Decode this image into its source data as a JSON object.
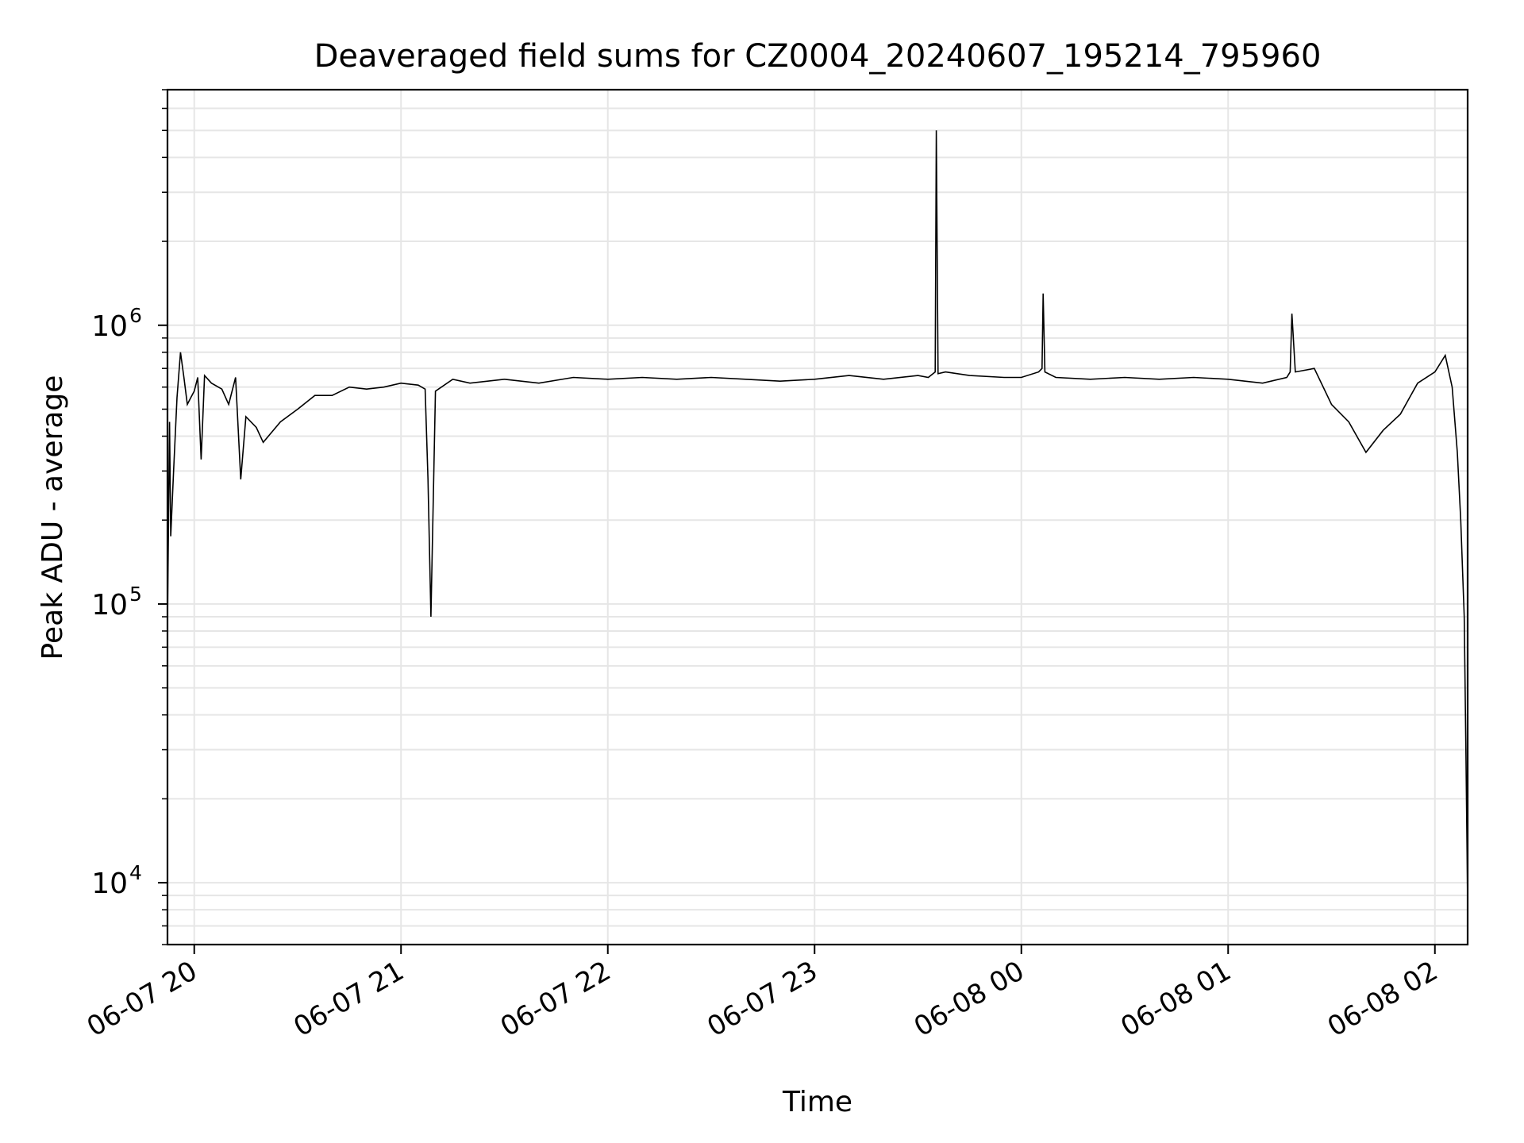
{
  "chart_data": {
    "type": "line",
    "title": "Deaveraged field sums for CZ0004_20240607_195214_795960",
    "xlabel": "Time",
    "ylabel": "Peak ADU - average",
    "yscale": "log",
    "grid": true,
    "line_color": "#000000",
    "grid_color": "#e6e6e6",
    "xlim": [
      "2024-06-07 19:52:14",
      "2024-06-08 02:09:30"
    ],
    "ylim": [
      6000,
      7000000
    ],
    "x_ticks": [
      {
        "value": "2024-06-07 20:00",
        "label": "06-07 20"
      },
      {
        "value": "2024-06-07 21:00",
        "label": "06-07 21"
      },
      {
        "value": "2024-06-07 22:00",
        "label": "06-07 22"
      },
      {
        "value": "2024-06-07 23:00",
        "label": "06-07 23"
      },
      {
        "value": "2024-06-08 00:00",
        "label": "06-08 00"
      },
      {
        "value": "2024-06-08 01:00",
        "label": "06-08 01"
      },
      {
        "value": "2024-06-08 02:00",
        "label": "06-08 02"
      }
    ],
    "y_ticks": [
      {
        "value": 10000,
        "base": "10",
        "exp": "4"
      },
      {
        "value": 100000,
        "base": "10",
        "exp": "5"
      },
      {
        "value": 1000000,
        "base": "10",
        "exp": "6"
      }
    ],
    "x": [
      "2024-06-07 19:52:14",
      "2024-06-07 19:52:50",
      "2024-06-07 19:53:10",
      "2024-06-07 19:54:00",
      "2024-06-07 19:55:00",
      "2024-06-07 19:56:00",
      "2024-06-07 19:57:00",
      "2024-06-07 19:58:00",
      "2024-06-07 19:59:00",
      "2024-06-07 20:00:00",
      "2024-06-07 20:01:00",
      "2024-06-07 20:02:00",
      "2024-06-07 20:03:00",
      "2024-06-07 20:05:00",
      "2024-06-07 20:08:00",
      "2024-06-07 20:10:00",
      "2024-06-07 20:12:00",
      "2024-06-07 20:13:30",
      "2024-06-07 20:15:00",
      "2024-06-07 20:18:00",
      "2024-06-07 20:20:00",
      "2024-06-07 20:25:00",
      "2024-06-07 20:30:00",
      "2024-06-07 20:35:00",
      "2024-06-07 20:40:00",
      "2024-06-07 20:45:00",
      "2024-06-07 20:50:00",
      "2024-06-07 20:55:00",
      "2024-06-07 21:00:00",
      "2024-06-07 21:05:00",
      "2024-06-07 21:07:00",
      "2024-06-07 21:07:50",
      "2024-06-07 21:08:40",
      "2024-06-07 21:10:00",
      "2024-06-07 21:15:00",
      "2024-06-07 21:20:00",
      "2024-06-07 21:30:00",
      "2024-06-07 21:40:00",
      "2024-06-07 21:50:00",
      "2024-06-07 22:00:00",
      "2024-06-07 22:10:00",
      "2024-06-07 22:20:00",
      "2024-06-07 22:30:00",
      "2024-06-07 22:40:00",
      "2024-06-07 22:50:00",
      "2024-06-07 23:00:00",
      "2024-06-07 23:10:00",
      "2024-06-07 23:20:00",
      "2024-06-07 23:30:00",
      "2024-06-07 23:33:00",
      "2024-06-07 23:35:00",
      "2024-06-07 23:35:20",
      "2024-06-07 23:35:50",
      "2024-06-07 23:38:00",
      "2024-06-07 23:45:00",
      "2024-06-07 23:55:00",
      "2024-06-08 00:00:00",
      "2024-06-08 00:05:00",
      "2024-06-08 00:06:00",
      "2024-06-08 00:06:20",
      "2024-06-08 00:06:50",
      "2024-06-08 00:10:00",
      "2024-06-08 00:20:00",
      "2024-06-08 00:30:00",
      "2024-06-08 00:40:00",
      "2024-06-08 00:50:00",
      "2024-06-08 01:00:00",
      "2024-06-08 01:10:00",
      "2024-06-08 01:17:00",
      "2024-06-08 01:18:00",
      "2024-06-08 01:18:30",
      "2024-06-08 01:19:30",
      "2024-06-08 01:25:00",
      "2024-06-08 01:30:00",
      "2024-06-08 01:35:00",
      "2024-06-08 01:40:00",
      "2024-06-08 01:45:00",
      "2024-06-08 01:50:00",
      "2024-06-08 01:55:00",
      "2024-06-08 02:00:00",
      "2024-06-08 02:03:00",
      "2024-06-08 02:05:00",
      "2024-06-08 02:06:30",
      "2024-06-08 02:07:30",
      "2024-06-08 02:08:30",
      "2024-06-08 02:09:00",
      "2024-06-08 02:09:30"
    ],
    "y": [
      85000,
      450000,
      175000,
      300000,
      550000,
      800000,
      650000,
      520000,
      550000,
      580000,
      650000,
      330000,
      660000,
      620000,
      590000,
      520000,
      650000,
      280000,
      470000,
      430000,
      380000,
      450000,
      500000,
      560000,
      560000,
      600000,
      590000,
      600000,
      620000,
      610000,
      590000,
      280000,
      90000,
      580000,
      640000,
      620000,
      640000,
      620000,
      650000,
      640000,
      650000,
      640000,
      650000,
      640000,
      630000,
      640000,
      660000,
      640000,
      660000,
      650000,
      680000,
      5000000,
      670000,
      680000,
      660000,
      650000,
      650000,
      680000,
      700000,
      1300000,
      680000,
      650000,
      640000,
      650000,
      640000,
      650000,
      640000,
      620000,
      650000,
      680000,
      1100000,
      680000,
      700000,
      520000,
      450000,
      350000,
      420000,
      480000,
      620000,
      680000,
      780000,
      600000,
      350000,
      200000,
      90000,
      30000,
      8500
    ]
  }
}
